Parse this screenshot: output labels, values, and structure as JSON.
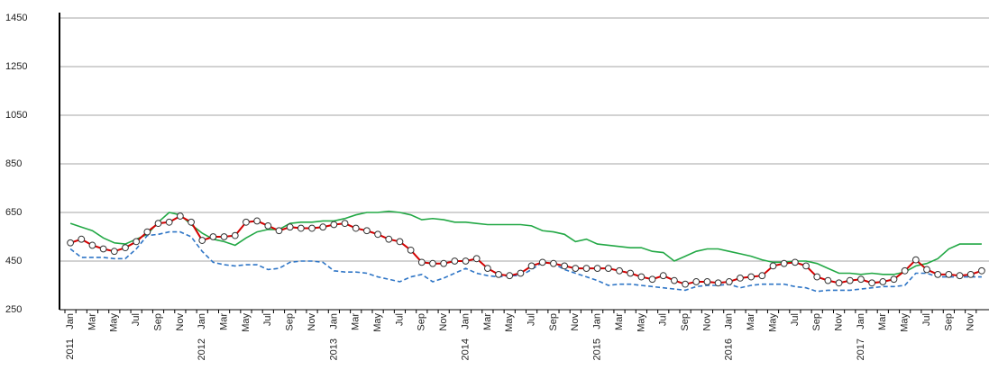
{
  "chart_data": {
    "type": "line",
    "categories": [
      "Jan",
      null,
      "Mar",
      null,
      "May",
      null,
      "Jul",
      null,
      "Sep",
      null,
      "Nov",
      null,
      "Jan",
      null,
      "Mar",
      null,
      "May",
      null,
      "Jul",
      null,
      "Sep",
      null,
      "Nov",
      null,
      "Jan",
      null,
      "Mar",
      null,
      "May",
      null,
      "Jul",
      null,
      "Sep",
      null,
      "Nov",
      null,
      "Jan",
      null,
      "Mar",
      null,
      "May",
      null,
      "Jul",
      null,
      "Sep",
      null,
      "Nov",
      null,
      "Jan",
      null,
      "Mar",
      null,
      "May",
      null,
      "Jul",
      null,
      "Sep",
      null,
      "Nov",
      null,
      "Jan",
      null,
      "Mar",
      null,
      "May",
      null,
      "Jul",
      null,
      "Sep",
      null,
      "Nov",
      null,
      "Jan",
      null,
      "Mar",
      null,
      "May",
      null,
      "Jul",
      null,
      "Sep",
      null,
      "Nov",
      null
    ],
    "years": [
      "2011",
      "2012",
      "2013",
      "2014",
      "2015",
      "2016",
      "2017"
    ],
    "series": [
      {
        "color": "#22a845",
        "dashed": false,
        "markers": false,
        "values": [
          605,
          590,
          575,
          545,
          525,
          520,
          540,
          560,
          610,
          650,
          640,
          600,
          565,
          540,
          530,
          515,
          545,
          570,
          580,
          580,
          605,
          610,
          610,
          615,
          615,
          625,
          640,
          650,
          650,
          655,
          650,
          640,
          620,
          625,
          620,
          610,
          610,
          605,
          600,
          600,
          600,
          600,
          595,
          575,
          570,
          560,
          530,
          540,
          520,
          515,
          510,
          505,
          505,
          490,
          485,
          450,
          470,
          490,
          500,
          500,
          490,
          480,
          470,
          455,
          445,
          445,
          450,
          450,
          440,
          420,
          400,
          400,
          395,
          400,
          395,
          395,
          405,
          430,
          440,
          460,
          500,
          520,
          520,
          520
        ]
      },
      {
        "color": "#2e75c6",
        "dashed": true,
        "markers": false,
        "values": [
          500,
          465,
          465,
          465,
          460,
          460,
          500,
          555,
          560,
          570,
          570,
          550,
          490,
          445,
          435,
          430,
          435,
          435,
          415,
          420,
          445,
          450,
          450,
          445,
          410,
          405,
          405,
          400,
          385,
          375,
          365,
          385,
          395,
          365,
          380,
          400,
          420,
          400,
          390,
          385,
          390,
          390,
          415,
          445,
          440,
          415,
          400,
          385,
          370,
          350,
          355,
          355,
          350,
          345,
          340,
          335,
          330,
          345,
          350,
          350,
          355,
          340,
          350,
          355,
          355,
          355,
          345,
          340,
          325,
          330,
          330,
          330,
          335,
          340,
          345,
          345,
          350,
          400,
          400,
          385,
          385,
          385,
          385,
          385
        ]
      },
      {
        "color": "#d40000",
        "dashed": false,
        "markers": true,
        "values": [
          525,
          540,
          515,
          500,
          490,
          505,
          530,
          570,
          605,
          610,
          635,
          610,
          535,
          550,
          550,
          555,
          610,
          615,
          595,
          575,
          590,
          585,
          585,
          590,
          600,
          605,
          585,
          575,
          560,
          540,
          530,
          495,
          445,
          440,
          440,
          450,
          450,
          460,
          420,
          395,
          390,
          400,
          430,
          445,
          440,
          430,
          420,
          420,
          420,
          420,
          410,
          400,
          385,
          375,
          390,
          370,
          355,
          365,
          365,
          360,
          365,
          380,
          385,
          390,
          430,
          440,
          445,
          430,
          385,
          370,
          360,
          370,
          375,
          360,
          365,
          375,
          410,
          455,
          415,
          395,
          395,
          390,
          395,
          410
        ]
      }
    ],
    "ylim": [
      250,
      1450
    ],
    "yticks": [
      250,
      450,
      650,
      850,
      1050,
      1250,
      1450
    ],
    "grid": true
  }
}
